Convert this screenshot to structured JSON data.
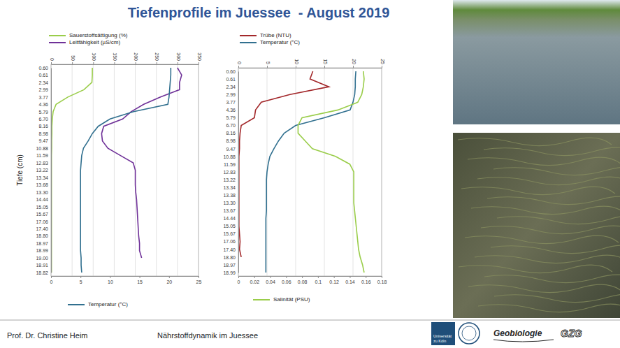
{
  "title": "Tiefenprofile im Juessee  - August 2019",
  "footer": {
    "author": "Prof. Dr. Christine Heim",
    "topic": "Nährstoffdynamik im Juessee",
    "logos": [
      "Universität zu Köln",
      "Geobiologie",
      "GZG"
    ]
  },
  "chart_data": [
    {
      "type": "line",
      "orientation": "horizontal",
      "x_label": "Tiefe (cm)",
      "legend": "top",
      "grid": true,
      "categories": [
        "0.60",
        "0.61",
        "2.34",
        "2.99",
        "3.77",
        "4.36",
        "5.79",
        "6.70",
        "8.16",
        "8.98",
        "9.47",
        "10.88",
        "11.59",
        "12.83",
        "13.22",
        "13.34",
        "13.68",
        "13.30",
        "14.44",
        "15.05",
        "15.67",
        "17.06",
        "17.40",
        "18.80",
        "18.97",
        "18.99",
        "19.00",
        "18.91",
        "18.82"
      ],
      "ylim": [
        0,
        350
      ],
      "yticks": [
        0,
        50,
        100,
        150,
        200,
        250,
        300,
        350
      ],
      "y2lim": [
        0,
        25
      ],
      "y2ticks": [
        0,
        5,
        10,
        15,
        20,
        25
      ],
      "series": [
        {
          "name": "Sauerstoffsättigung (%)",
          "color": "#9acd4a",
          "values": [
            98,
            98,
            97,
            78,
            40,
            12,
            5,
            3,
            2,
            2,
            1.5,
            1.5,
            1,
            1,
            1,
            1,
            1,
            1,
            1,
            1,
            1,
            1,
            1,
            1,
            1,
            1,
            1,
            1,
            1
          ]
        },
        {
          "name": "Leitfähigkeit (µS/cm)",
          "color": "#6f3198",
          "values": [
            300,
            310,
            305,
            305,
            260,
            220,
            190,
            170,
            125,
            120,
            122,
            135,
            165,
            195,
            200,
            200,
            200,
            201,
            203,
            204,
            205,
            206,
            207,
            208,
            210,
            210,
            215,
            null,
            null
          ]
        },
        {
          "name": "Temperatur (°C)",
          "color": "#31708f",
          "axis": "y2",
          "values": [
            20.3,
            20.3,
            20.2,
            20.1,
            20.0,
            19.8,
            14.0,
            10.0,
            8.0,
            7.0,
            6.3,
            5.5,
            5.2,
            5.1,
            5.0,
            5.0,
            5.0,
            5.0,
            5.0,
            5.0,
            5.0,
            5.0,
            5.0,
            5.0,
            5.0,
            5.0,
            5.1,
            5.1,
            5.2
          ]
        }
      ]
    },
    {
      "type": "line",
      "orientation": "horizontal",
      "legend": "top",
      "grid": true,
      "categories": [
        "0.60",
        "0.61",
        "2.34",
        "2.99",
        "3.77",
        "4.36",
        "5.79",
        "6.70",
        "8.16",
        "8.98",
        "9.47",
        "10.88",
        "11.59",
        "12.83",
        "13.22",
        "13.34",
        "13.38",
        "13.30",
        "13.67",
        "14.44",
        "15.05",
        "15.67",
        "17.06",
        "17.40",
        "18.80",
        "18.97",
        "18.99"
      ],
      "ylim": [
        0,
        25
      ],
      "yticks": [
        0,
        5,
        10,
        15,
        20,
        25
      ],
      "y2lim": [
        0,
        0.18
      ],
      "y2ticks": [
        0,
        0.02,
        0.04,
        0.06,
        0.08,
        0.1,
        0.12,
        0.14,
        0.16,
        0.18
      ],
      "series": [
        {
          "name": "Trübe (NTU)",
          "color": "#a3282b",
          "values": [
            13,
            12.5,
            15.8,
            9,
            4,
            3,
            2.8,
            0.5,
            0.3,
            0.2,
            0.2,
            0.1,
            0.1,
            0.1,
            0.1,
            0.1,
            0.1,
            0.1,
            0.1,
            0.1,
            0.1,
            0.2,
            0.3,
            0.2,
            0.5,
            null,
            null
          ]
        },
        {
          "name": "Temperatur (°C)",
          "color": "#31708f",
          "values": [
            20.5,
            20.4,
            20.4,
            20.3,
            20.0,
            19.5,
            15.0,
            10.0,
            8.0,
            7.0,
            6.2,
            5.5,
            5.2,
            5.0,
            4.9,
            4.9,
            4.9,
            4.9,
            4.9,
            4.8,
            4.8,
            4.8,
            4.8,
            4.8,
            4.8,
            4.8,
            4.8
          ]
        },
        {
          "name": "Salinität (PSU)",
          "color": "#9acd4a",
          "axis": "y2",
          "values": [
            0.157,
            0.158,
            0.157,
            0.155,
            0.15,
            0.125,
            0.08,
            0.075,
            0.075,
            0.084,
            0.093,
            0.122,
            0.14,
            0.145,
            0.145,
            0.145,
            0.145,
            0.145,
            0.146,
            0.147,
            0.148,
            0.149,
            0.15,
            0.151,
            0.153,
            0.156,
            0.158
          ]
        }
      ]
    }
  ]
}
